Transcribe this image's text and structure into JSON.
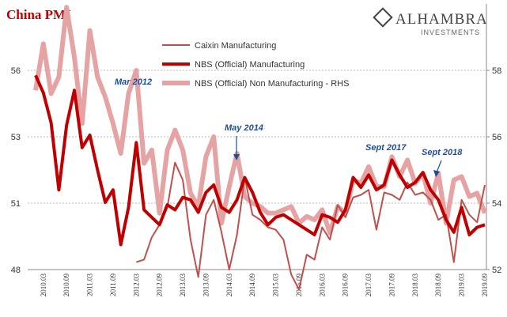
{
  "chart_data": {
    "type": "line",
    "title": "China PMI",
    "logo": {
      "name": "ALHAMBRA",
      "sub": "INVESTMENTS"
    },
    "annotations": [
      "Mar 2012",
      "May 2014",
      "Sept 2017",
      "Sept 2018"
    ],
    "categories": [
      null,
      "2010.03",
      null,
      null,
      "2010.09",
      null,
      null,
      "2011.03",
      null,
      null,
      "2011.09",
      null,
      null,
      "2012.03",
      null,
      null,
      "2012.09",
      null,
      null,
      "2013.03",
      null,
      null,
      "2013.09",
      null,
      null,
      "2014.03",
      null,
      null,
      "2014.09",
      null,
      null,
      "2015.03",
      null,
      null,
      "2015.09",
      null,
      null,
      "2016.03",
      null,
      null,
      "2016.09",
      null,
      null,
      "2017.03",
      null,
      null,
      "2017.09",
      null,
      null,
      "2018.03",
      null,
      null,
      "2018.09",
      null,
      null,
      "2019.03",
      null,
      null,
      "2019.09"
    ],
    "series": [
      {
        "name": "Caixin Manufacturing",
        "color": "#c0504d",
        "width": 2,
        "axis": "y",
        "values": [
          null,
          null,
          null,
          null,
          null,
          null,
          null,
          null,
          null,
          null,
          null,
          null,
          null,
          48.3,
          48.4,
          49.3,
          49.8,
          50.5,
          52.3,
          51.6,
          49.2,
          47.7,
          50.2,
          50.8,
          49.5,
          48.0,
          49.4,
          51.7,
          50.2,
          50.0,
          49.7,
          49.6,
          49.2,
          47.8,
          47.2,
          48.6,
          48.4,
          49.7,
          49.2,
          50.6,
          50.1,
          50.9,
          51.0,
          51.2,
          49.6,
          51.1,
          51.0,
          50.8,
          51.5,
          51.0,
          51.1,
          50.8,
          50.0,
          50.2,
          48.3,
          50.8,
          50.2,
          49.9,
          51.4
        ]
      },
      {
        "name": "NBS (Official) Manufacturing",
        "color": "#c00000",
        "width": 4,
        "axis": "y",
        "values": [
          55.8,
          55.1,
          53.9,
          51.2,
          53.8,
          55.2,
          52.9,
          53.4,
          52.0,
          50.7,
          51.2,
          49.0,
          50.5,
          53.1,
          50.4,
          50.1,
          49.8,
          50.6,
          50.4,
          50.9,
          50.8,
          50.3,
          51.1,
          51.4,
          50.5,
          50.3,
          50.8,
          51.7,
          51.1,
          50.3,
          49.8,
          50.1,
          50.2,
          50.0,
          49.8,
          49.6,
          49.4,
          50.2,
          50.1,
          49.9,
          50.4,
          51.7,
          51.3,
          51.8,
          51.2,
          51.4,
          52.4,
          51.8,
          51.3,
          51.5,
          51.9,
          51.2,
          50.8,
          50.0,
          49.5,
          50.5,
          49.4,
          49.7,
          49.8
        ]
      },
      {
        "name": "NBS (Official) Non Manufacturing - RHS",
        "color": "#e6a3a3",
        "width": 6,
        "axis": "y2",
        "values": [
          57.4,
          58.8,
          57.3,
          57.8,
          59.9,
          58.4,
          56.4,
          59.2,
          57.8,
          57.2,
          56.4,
          55.5,
          57.3,
          58.0,
          55.2,
          55.6,
          53.7,
          55.6,
          56.2,
          55.6,
          54.3,
          53.9,
          55.4,
          56.0,
          53.4,
          54.5,
          55.5,
          54.2,
          54.0,
          53.9,
          53.7,
          53.7,
          53.8,
          53.9,
          53.4,
          53.6,
          53.5,
          53.8,
          53.1,
          53.9,
          53.7,
          54.7,
          54.6,
          55.1,
          54.5,
          54.5,
          55.4,
          54.8,
          55.3,
          54.6,
          54.9,
          54.0,
          54.9,
          53.4,
          54.7,
          54.8,
          54.2,
          54.3,
          53.7
        ]
      }
    ],
    "ylim": [
      48,
      58.667
    ],
    "yticks": [
      48,
      {
        "value": 50.667,
        "label": "51"
      },
      {
        "value": 53.333,
        "label": "53"
      },
      56
    ],
    "y2lim": [
      52,
      60
    ],
    "y2ticks": [
      52,
      54,
      56,
      58
    ],
    "grid": true
  }
}
